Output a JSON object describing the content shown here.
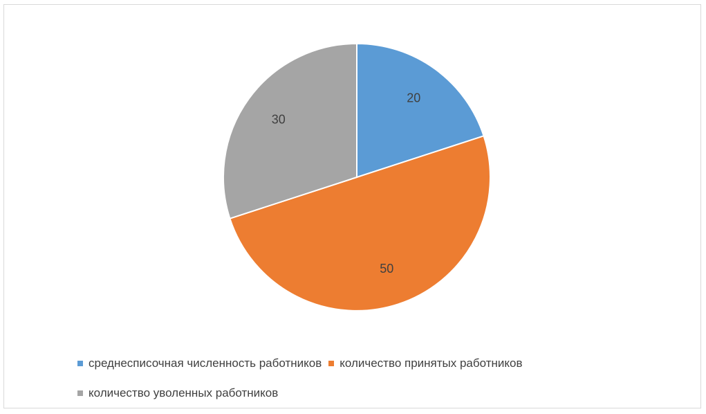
{
  "chart_data": {
    "type": "pie",
    "categories": [
      "среднесписочная численность работников",
      "количество принятых работников",
      "количество уволенных работников"
    ],
    "values": [
      20,
      50,
      30
    ],
    "colors": [
      "#5b9bd5",
      "#ed7d31",
      "#a5a5a5"
    ],
    "data_labels": [
      "20",
      "50",
      "30"
    ],
    "start_angle_deg": 0,
    "direction": "clockwise",
    "legend_position": "bottom"
  }
}
